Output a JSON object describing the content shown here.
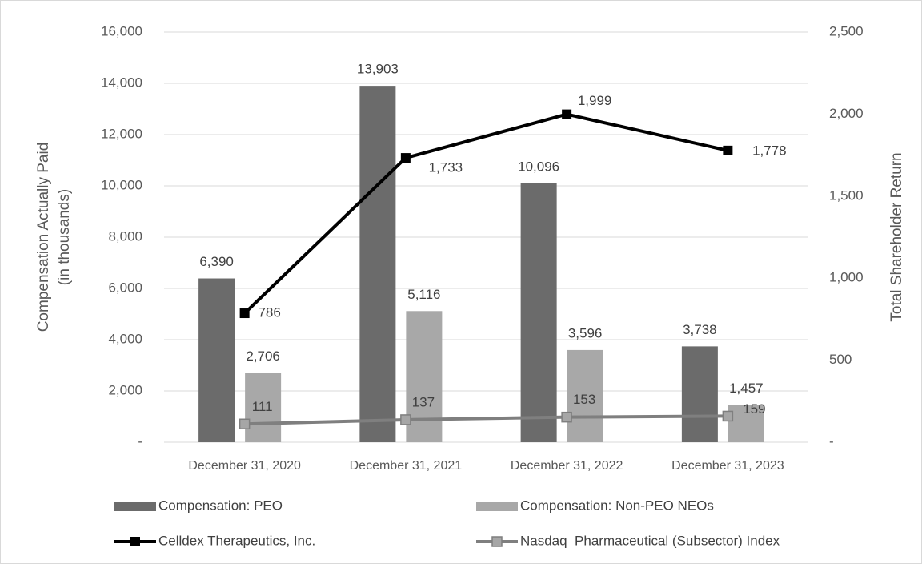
{
  "chart_data": {
    "type": "bar",
    "categories": [
      "December 31, 2020",
      "December 31, 2021",
      "December 31, 2022",
      "December 31, 2023"
    ],
    "series": [
      {
        "name": "Compensation: PEO",
        "type": "bar",
        "color": "#6b6b6b",
        "values": [
          6390,
          13903,
          10096,
          3738
        ],
        "value_labels": [
          "6,390",
          "13,903",
          "10,096",
          "3,738"
        ]
      },
      {
        "name": "Compensation: Non-PEO NEOs",
        "type": "bar",
        "color": "#a8a8a8",
        "values": [
          2706,
          5116,
          3596,
          1457
        ],
        "value_labels": [
          "2,706",
          "5,116",
          "3,596",
          "1,457"
        ]
      },
      {
        "name": "Celldex Therapeutics, Inc.",
        "type": "line",
        "axis": "y2",
        "color": "#000000",
        "values": [
          786,
          1733,
          1999,
          1778
        ],
        "value_labels": [
          "786",
          "1,733",
          "1,999",
          "1,778"
        ]
      },
      {
        "name": "Nasdaq  Pharmaceutical (Subsector) Index",
        "type": "line",
        "axis": "y2",
        "color": "#7f7f7f",
        "values": [
          111,
          137,
          153,
          159
        ]
      }
    ],
    "ylabel": "Compensation Actually Paid\n(in thousands)",
    "y2label": "Total Shareholder Return",
    "ylim": [
      0,
      16000
    ],
    "yticks": [
      {
        "value": 0,
        "label": "-"
      },
      {
        "value": 2000,
        "label": "2,000"
      },
      {
        "value": 4000,
        "label": "4,000"
      },
      {
        "value": 6000,
        "label": "6,000"
      },
      {
        "value": 8000,
        "label": "8,000"
      },
      {
        "value": 10000,
        "label": "10,000"
      },
      {
        "value": 12000,
        "label": "12,000"
      },
      {
        "value": 14000,
        "label": "14,000"
      },
      {
        "value": 16000,
        "label": "16,000"
      }
    ],
    "y2lim": [
      0,
      2500
    ],
    "y2ticks": [
      {
        "value": 0,
        "label": "-"
      },
      500,
      {
        "value": 1000,
        "label": "1,000"
      },
      {
        "value": 1500,
        "label": "1,500"
      },
      {
        "value": 2000,
        "label": "2,000"
      },
      {
        "value": 2500,
        "label": "2,500"
      }
    ],
    "grid": true,
    "legend": "bottom"
  }
}
